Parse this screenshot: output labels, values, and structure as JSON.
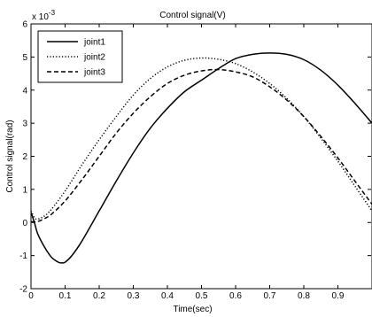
{
  "chart_data": {
    "type": "line",
    "title": "Control signal(V)",
    "xlabel": "Time(sec)",
    "ylabel": "Control signal(rad)",
    "exponent_label": "x 10",
    "exponent_power": "-3",
    "xlim": [
      0,
      1
    ],
    "ylim": [
      -2,
      6
    ],
    "xticks": [
      "0",
      "0.1",
      "0.2",
      "0.3",
      "0.4",
      "0.5",
      "0.6",
      "0.7",
      "0.8",
      "0.9"
    ],
    "xtick_values": [
      0,
      0.1,
      0.2,
      0.3,
      0.4,
      0.5,
      0.6,
      0.7,
      0.8,
      0.9
    ],
    "yticks": [
      "-2",
      "-1",
      "0",
      "1",
      "2",
      "3",
      "4",
      "5",
      "6"
    ],
    "ytick_values": [
      -2,
      -1,
      0,
      1,
      2,
      3,
      4,
      5,
      6
    ],
    "grid": false,
    "legend_position": "top-left",
    "series": [
      {
        "name": "joint1",
        "style": "solid",
        "color": "#000000",
        "x": [
          0,
          0.01,
          0.02,
          0.04,
          0.06,
          0.08,
          0.09,
          0.1,
          0.12,
          0.15,
          0.2,
          0.25,
          0.3,
          0.35,
          0.4,
          0.45,
          0.5,
          0.55,
          0.6,
          0.65,
          0.7,
          0.75,
          0.8,
          0.85,
          0.9,
          0.95,
          1.0
        ],
        "y": [
          0.3,
          0.0,
          -0.35,
          -0.75,
          -1.05,
          -1.2,
          -1.22,
          -1.2,
          -1.0,
          -0.55,
          0.35,
          1.25,
          2.1,
          2.85,
          3.45,
          3.95,
          4.3,
          4.65,
          4.95,
          5.08,
          5.12,
          5.08,
          4.92,
          4.6,
          4.15,
          3.6,
          3.0
        ]
      },
      {
        "name": "joint2",
        "style": "dotted",
        "color": "#000000",
        "x": [
          0,
          0.01,
          0.02,
          0.04,
          0.06,
          0.1,
          0.15,
          0.2,
          0.25,
          0.3,
          0.35,
          0.4,
          0.45,
          0.5,
          0.55,
          0.6,
          0.65,
          0.7,
          0.75,
          0.8,
          0.85,
          0.9,
          0.95,
          1.0
        ],
        "y": [
          0.35,
          0.15,
          0.1,
          0.2,
          0.4,
          0.95,
          1.75,
          2.5,
          3.2,
          3.85,
          4.35,
          4.7,
          4.9,
          4.97,
          4.93,
          4.8,
          4.55,
          4.2,
          3.75,
          3.2,
          2.55,
          1.85,
          1.1,
          0.35
        ]
      },
      {
        "name": "joint3",
        "style": "dashed",
        "color": "#000000",
        "x": [
          0,
          0.02,
          0.04,
          0.06,
          0.1,
          0.15,
          0.2,
          0.25,
          0.3,
          0.35,
          0.4,
          0.45,
          0.5,
          0.55,
          0.6,
          0.65,
          0.7,
          0.75,
          0.8,
          0.85,
          0.9,
          0.95,
          1.0
        ],
        "y": [
          0.02,
          0.03,
          0.12,
          0.25,
          0.65,
          1.3,
          2.0,
          2.7,
          3.3,
          3.8,
          4.2,
          4.45,
          4.58,
          4.62,
          4.55,
          4.4,
          4.1,
          3.7,
          3.2,
          2.6,
          1.95,
          1.25,
          0.55
        ]
      }
    ]
  }
}
